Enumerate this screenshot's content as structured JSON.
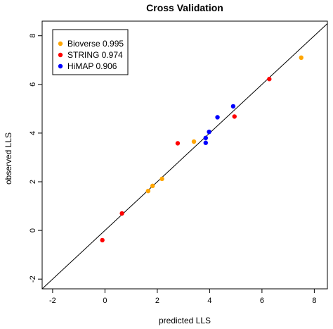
{
  "chart_data": {
    "type": "scatter",
    "title": "Cross Validation",
    "xlabel": "predicted LLS",
    "ylabel": "observed LLS",
    "xlim": [
      -2.4,
      8.5
    ],
    "ylim": [
      -2.4,
      8.6
    ],
    "xticks": [
      "-2",
      "0",
      "2",
      "4",
      "6",
      "8"
    ],
    "yticks": [
      "-2",
      "0",
      "2",
      "4",
      "6",
      "8"
    ],
    "reference_line": "y = x",
    "legend": {
      "placement": "top-left"
    },
    "series": [
      {
        "name": "Bioverse 0.995",
        "color": "#FFA500",
        "points": [
          [
            1.65,
            1.62
          ],
          [
            1.82,
            1.83
          ],
          [
            2.18,
            2.12
          ],
          [
            3.4,
            3.65
          ],
          [
            7.5,
            7.1
          ]
        ]
      },
      {
        "name": "STRING 0.974",
        "color": "#FF0000",
        "points": [
          [
            -0.1,
            -0.4
          ],
          [
            0.65,
            0.7
          ],
          [
            2.78,
            3.58
          ],
          [
            4.95,
            4.68
          ],
          [
            6.28,
            6.22
          ]
        ]
      },
      {
        "name": "HiMAP 0.906",
        "color": "#0000FF",
        "points": [
          [
            3.85,
            3.6
          ],
          [
            3.85,
            3.8
          ],
          [
            3.98,
            4.05
          ],
          [
            4.3,
            4.65
          ],
          [
            4.9,
            5.1
          ]
        ]
      }
    ]
  }
}
